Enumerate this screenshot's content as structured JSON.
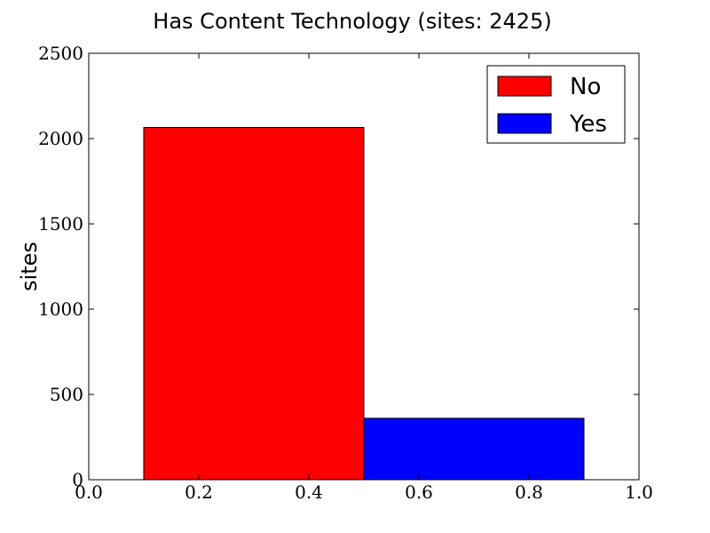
{
  "colors": {
    "no": "#ff0000",
    "yes": "#0000ff",
    "axis": "#000000",
    "background": "#ffffff"
  },
  "chart_data": {
    "type": "bar",
    "title": "Has Content Technology (sites: 2425)",
    "xlabel": "",
    "ylabel": "sites",
    "xlim": [
      0.0,
      1.0
    ],
    "ylim": [
      0,
      2500
    ],
    "xticks": [
      0.0,
      0.2,
      0.4,
      0.6,
      0.8,
      1.0
    ],
    "xtick_labels": [
      "0.0",
      "0.2",
      "0.4",
      "0.6",
      "0.8",
      "1.0"
    ],
    "yticks": [
      0,
      500,
      1000,
      1500,
      2000,
      2500
    ],
    "ytick_labels": [
      "0",
      "500",
      "1000",
      "1500",
      "2000",
      "2500"
    ],
    "bars": [
      {
        "name": "No",
        "x_start": 0.1,
        "x_end": 0.5,
        "value": 2065,
        "color": "#ff0000"
      },
      {
        "name": "Yes",
        "x_start": 0.5,
        "x_end": 0.9,
        "value": 360,
        "color": "#0000ff"
      }
    ],
    "legend": {
      "placement": "top-right",
      "entries": [
        {
          "label": "No",
          "color": "#ff0000"
        },
        {
          "label": "Yes",
          "color": "#0000ff"
        }
      ]
    },
    "grid": false
  }
}
